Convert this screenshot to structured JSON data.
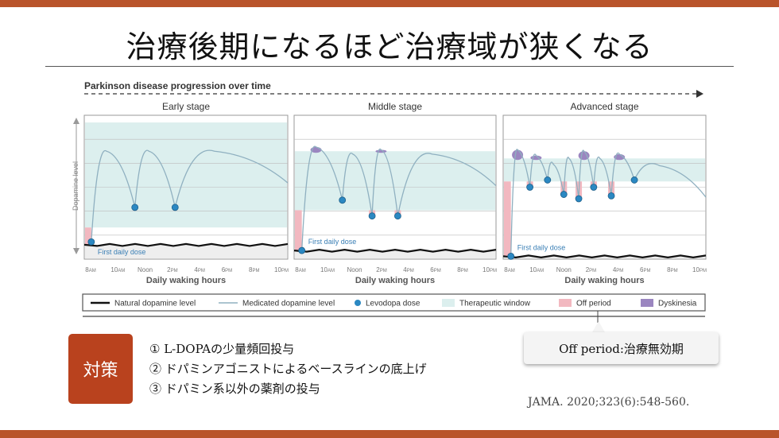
{
  "title": "治療後期になるほど治療域が狭くなる",
  "figure": {
    "progress_label": "Parkinson disease progression over time",
    "y_axis_label": "Dopamine level",
    "x_axis_label": "Daily waking hours",
    "x_ticks": [
      "8",
      "10",
      "Noon",
      "2",
      "4",
      "6",
      "8",
      "10"
    ],
    "x_tick_suffix": [
      "AM",
      "AM",
      "",
      "PM",
      "PM",
      "PM",
      "PM",
      "PM"
    ],
    "first_dose_label": "First daily dose",
    "colors": {
      "window": "#dcefee",
      "off": "#f2b8c0",
      "dyskinesia": "#9b86c0",
      "dose": "#2b88c2",
      "curve": "#8fb0c0",
      "natural": "#111111",
      "panel_bg": "#eeeeee"
    },
    "panels": [
      {
        "name": "Early stage",
        "window": [
          0.05,
          0.78
        ],
        "natural_level": 0.9,
        "off_peak": 0.8,
        "doses": [
          0.05,
          3.25,
          6.2
        ],
        "peaks": [
          0.25,
          0.25,
          0.25
        ],
        "troughs": [
          0.88,
          0.64,
          0.64
        ]
      },
      {
        "name": "Middle stage",
        "window": [
          0.25,
          0.66
        ],
        "natural_level": 0.94,
        "off_peak": 0.66,
        "doses": [
          0.1,
          3.1,
          5.3,
          7.2
        ],
        "peaks": [
          0.22,
          0.27,
          0.24,
          0.27
        ],
        "troughs": [
          0.94,
          0.59,
          0.7,
          0.7
        ]
      },
      {
        "name": "Advanced stage",
        "window": [
          0.3,
          0.46
        ],
        "natural_level": 0.98,
        "off_peak": 0.46,
        "doses": [
          0.1,
          1.5,
          2.8,
          4.0,
          5.1,
          6.2,
          7.5,
          9.2
        ],
        "peaks": [
          0.24,
          0.28,
          0.34,
          0.3,
          0.25,
          0.3,
          0.27,
          0.35
        ],
        "troughs": [
          0.98,
          0.5,
          0.45,
          0.55,
          0.58,
          0.5,
          0.56,
          0.45
        ]
      }
    ],
    "legend": [
      {
        "label": "Natural dopamine level",
        "icon": "black-line-icon"
      },
      {
        "label": "Medicated dopamine level",
        "icon": "blue-line-icon"
      },
      {
        "label": "Levodopa dose",
        "icon": "blue-dot-icon"
      },
      {
        "label": "Therapeutic window",
        "icon": "teal-box-icon"
      },
      {
        "label": "Off period",
        "icon": "pink-box-icon"
      },
      {
        "label": "Dyskinesia",
        "icon": "purple-box-icon"
      }
    ]
  },
  "measures": {
    "heading": "対策",
    "items": [
      "① L-DOPAの少量頻回投与",
      "② ドパミンアゴニストによるベースラインの底上げ",
      "③ ドパミン系以外の薬剤の投与"
    ]
  },
  "callout": "Off period:治療無効期",
  "citation": "JAMA. 2020;323(6):548-560."
}
